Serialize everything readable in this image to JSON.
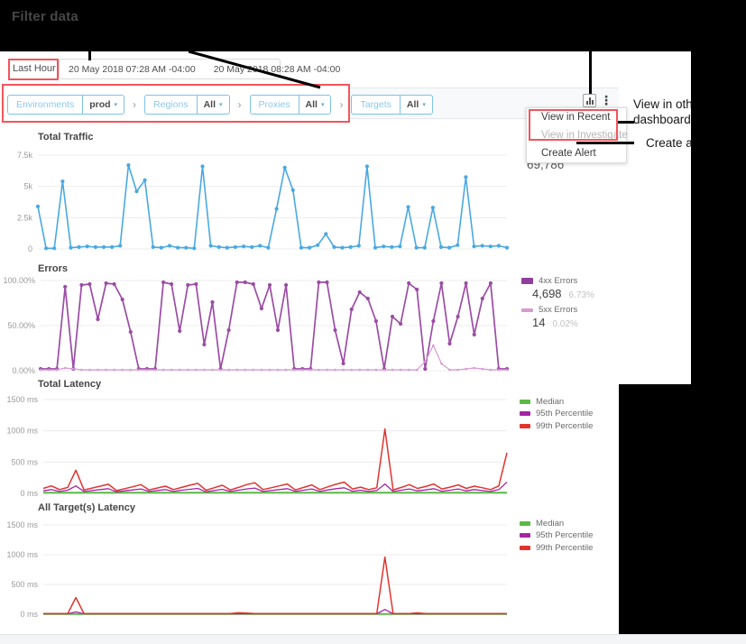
{
  "annotations": {
    "filter_data_label": "Filter data",
    "dashboard_note_line1": "View in oth",
    "dashboard_note_line2": "dashboard",
    "create_alert_note": "Create a",
    "accent_color": "#f2555c"
  },
  "toolbar": {
    "time_range_label": "Last Hour",
    "caret": "▾",
    "date_start": "20 May 2018 07:28 AM -04:00",
    "date_end": "20 May 2018 08:28 AM -04:00"
  },
  "filters": {
    "separator": "›",
    "items": [
      {
        "label": "Environments",
        "value": "prod"
      },
      {
        "label": "Regions",
        "value": "All"
      },
      {
        "label": "Proxies",
        "value": "All"
      },
      {
        "label": "Targets",
        "value": "All"
      }
    ]
  },
  "header_icons": {
    "chart_button": "bar-chart",
    "kebab_glyph": "⋮"
  },
  "menu": {
    "items": [
      {
        "label": "View in Recent",
        "disabled": false
      },
      {
        "label": "View in Investigate",
        "disabled": true
      },
      {
        "label": "Create Alert",
        "disabled": false
      }
    ]
  },
  "chart_data": [
    {
      "type": "line",
      "title": "Total Traffic",
      "total": "69,786",
      "ylim": [
        0,
        7.5
      ],
      "yticks": {
        "values": [
          7.5,
          5,
          2.5,
          0
        ],
        "labels": [
          "7.5k",
          "5k",
          "2.5k",
          "0"
        ]
      },
      "series": [
        {
          "name": "Total Traffic",
          "color": "#49a9e1",
          "markers": true,
          "values": [
            3.4,
            0.05,
            0.05,
            5.4,
            0.1,
            0.15,
            0.2,
            0.15,
            0.15,
            0.15,
            0.25,
            6.7,
            4.6,
            5.5,
            0.15,
            0.1,
            0.25,
            0.1,
            0.1,
            0.05,
            6.6,
            0.25,
            0.15,
            0.1,
            0.15,
            0.2,
            0.15,
            0.25,
            0.1,
            3.2,
            6.5,
            4.7,
            0.1,
            0.1,
            0.3,
            1.2,
            0.15,
            0.1,
            0.15,
            0.25,
            6.6,
            0.1,
            0.2,
            0.15,
            0.2,
            3.35,
            0.1,
            0.1,
            3.3,
            0.15,
            0.1,
            0.3,
            5.75,
            0.2,
            0.25,
            0.2,
            0.25,
            0.1
          ]
        }
      ]
    },
    {
      "type": "line",
      "title": "Errors",
      "ylim": [
        0,
        100
      ],
      "yticks": {
        "values": [
          100,
          50,
          0
        ],
        "labels": [
          "100.00%",
          "50.00%",
          "0.00%"
        ]
      },
      "series": [
        {
          "name": "4xx Errors",
          "color": "#9b4ca5",
          "markers": true,
          "values": [
            2,
            2,
            2,
            93,
            2,
            95,
            96,
            57,
            97,
            96,
            79,
            43,
            2,
            2,
            2,
            98,
            96,
            44,
            95,
            96,
            29,
            76,
            2,
            45,
            98,
            98,
            96,
            69,
            95,
            45,
            95,
            2,
            2,
            2,
            98,
            98,
            45,
            8,
            68,
            87,
            80,
            55,
            2,
            60,
            52,
            97,
            90,
            2,
            55,
            97,
            30,
            60,
            97,
            40,
            80,
            97,
            2,
            2
          ]
        },
        {
          "name": "5xx Errors",
          "color": "#d79ad2",
          "markers": true,
          "values": [
            1,
            1,
            1,
            3,
            2,
            1,
            1,
            1,
            1,
            1,
            1,
            1,
            1,
            1,
            1,
            1,
            1,
            1,
            1,
            1,
            1,
            1,
            1,
            1,
            1,
            1,
            1,
            1,
            1,
            1,
            1,
            1,
            1,
            1,
            1,
            1,
            1,
            1,
            1,
            1,
            1,
            1,
            1,
            1,
            1,
            1,
            1,
            10,
            28,
            8,
            1,
            1,
            2,
            3,
            2,
            1,
            1,
            1
          ]
        }
      ],
      "legend": [
        {
          "label": "4xx Errors",
          "color": "#8d3f9b",
          "value": "4,698",
          "pct": "6.73%"
        },
        {
          "label": "5xx Errors",
          "color": "#d79ad2",
          "value": "14",
          "pct": "0.02%"
        }
      ]
    },
    {
      "type": "line",
      "title": "Total Latency",
      "ylim": [
        0,
        1500
      ],
      "yticks": {
        "values": [
          1500,
          1000,
          500,
          0
        ],
        "labels": [
          "1500 ms",
          "1000 ms",
          "500 ms",
          "0 ms"
        ]
      },
      "series": [
        {
          "name": "Median",
          "color": "#5aba46",
          "markers": false,
          "constant": 12,
          "count": 58
        },
        {
          "name": "95th Percentile",
          "color": "#a625a6",
          "markers": false,
          "values": [
            40,
            60,
            30,
            50,
            120,
            30,
            45,
            60,
            75,
            25,
            40,
            55,
            70,
            30,
            45,
            60,
            30,
            50,
            65,
            80,
            25,
            45,
            65,
            30,
            50,
            70,
            85,
            30,
            45,
            60,
            75,
            30,
            50,
            70,
            30,
            55,
            75,
            90,
            35,
            50,
            30,
            45,
            150,
            30,
            50,
            70,
            40,
            55,
            75,
            35,
            50,
            70,
            40,
            60,
            45,
            30,
            60,
            180
          ]
        },
        {
          "name": "99th Percentile",
          "color": "#e0342f",
          "markers": false,
          "values": [
            80,
            120,
            60,
            95,
            370,
            55,
            85,
            115,
            145,
            45,
            75,
            105,
            140,
            55,
            85,
            115,
            60,
            95,
            130,
            160,
            50,
            90,
            130,
            55,
            95,
            140,
            170,
            60,
            90,
            120,
            150,
            55,
            95,
            135,
            60,
            105,
            145,
            180,
            70,
            100,
            60,
            90,
            1030,
            55,
            95,
            140,
            80,
            110,
            150,
            70,
            100,
            135,
            80,
            115,
            90,
            60,
            120,
            650
          ]
        }
      ],
      "legend": [
        {
          "label": "Median",
          "color": "#5aba46"
        },
        {
          "label": "95th Percentile",
          "color": "#a625a6"
        },
        {
          "label": "99th Percentile",
          "color": "#e0342f"
        }
      ]
    },
    {
      "type": "line",
      "title": "All Target(s) Latency",
      "ylim": [
        0,
        1500
      ],
      "yticks": {
        "values": [
          1500,
          1000,
          500,
          0
        ],
        "labels": [
          "1500 ms",
          "1000 ms",
          "500 ms",
          "0 ms"
        ]
      },
      "series": [
        {
          "name": "Median",
          "color": "#5aba46",
          "markers": false,
          "constant": 5,
          "count": 58
        },
        {
          "name": "95th Percentile",
          "color": "#a625a6",
          "markers": false,
          "values": [
            8,
            8,
            8,
            8,
            40,
            8,
            8,
            8,
            8,
            8,
            8,
            8,
            8,
            8,
            8,
            8,
            8,
            8,
            8,
            8,
            8,
            8,
            8,
            8,
            8,
            8,
            8,
            8,
            8,
            8,
            8,
            8,
            8,
            8,
            8,
            8,
            8,
            8,
            8,
            8,
            8,
            8,
            80,
            8,
            8,
            8,
            8,
            8,
            8,
            8,
            8,
            8,
            8,
            8,
            8,
            8,
            8,
            8
          ]
        },
        {
          "name": "99th Percentile",
          "color": "#e0342f",
          "markers": false,
          "values": [
            10,
            10,
            10,
            10,
            280,
            10,
            10,
            10,
            10,
            10,
            10,
            10,
            10,
            10,
            10,
            10,
            10,
            10,
            10,
            10,
            10,
            10,
            10,
            10,
            25,
            18,
            10,
            10,
            10,
            10,
            10,
            10,
            10,
            10,
            10,
            10,
            10,
            10,
            10,
            10,
            10,
            10,
            960,
            10,
            10,
            10,
            22,
            10,
            10,
            10,
            10,
            10,
            10,
            10,
            10,
            10,
            10,
            10
          ]
        }
      ],
      "legend": [
        {
          "label": "Median",
          "color": "#5aba46"
        },
        {
          "label": "95th Percentile",
          "color": "#a625a6"
        },
        {
          "label": "99th Percentile",
          "color": "#e0342f"
        }
      ]
    }
  ]
}
